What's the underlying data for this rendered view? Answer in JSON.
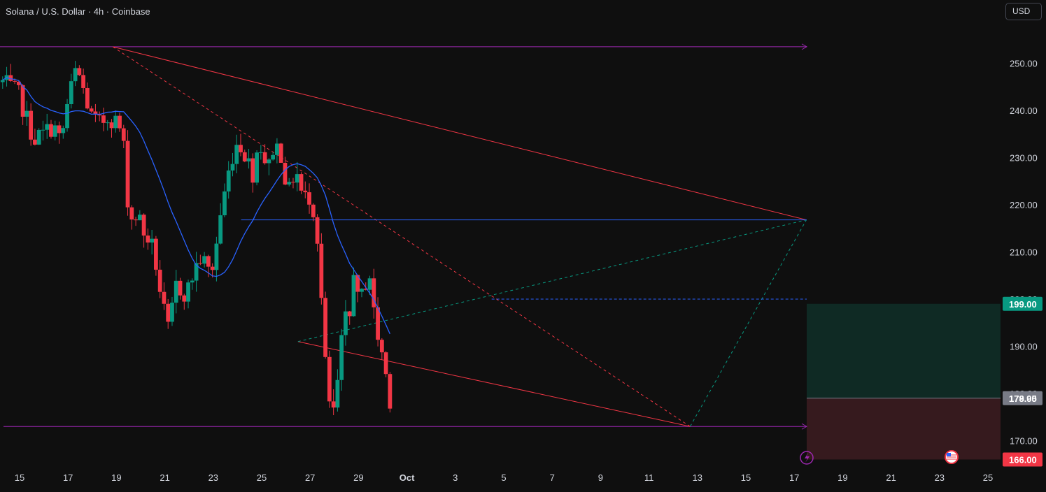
{
  "header": {
    "symbol_title": "Solana / U.S. Dollar · 4h · Coinbase",
    "currency": "USD"
  },
  "colors": {
    "background": "#0f0f0f",
    "up_candle": "#089981",
    "down_candle": "#f23645",
    "moving_average": "#2962ff",
    "horizontal_ray": "#9c27b0",
    "trend_line": "#f23645",
    "projection_dashed": "#089981",
    "profit_zone": "#0f2a24",
    "loss_zone": "#361a1e",
    "axis_text": "#d1d4dc"
  },
  "chart_data": {
    "type": "candlestick",
    "symbol": "SOLUSD",
    "timeframe": "4h",
    "exchange": "Coinbase",
    "x_axis_ticks": [
      "15",
      "17",
      "19",
      "21",
      "23",
      "25",
      "27",
      "29",
      "Oct",
      "3",
      "5",
      "7",
      "9",
      "11",
      "13",
      "15",
      "17",
      "19",
      "21",
      "23",
      "25"
    ],
    "y_axis_ticks": [
      "170.00",
      "180.00",
      "190.00",
      "200.00",
      "210.00",
      "220.00",
      "230.00",
      "240.00",
      "250.00"
    ],
    "y_range": [
      164,
      258
    ],
    "price_labels": {
      "target": "199.00",
      "entry": "179.00",
      "last": "178.95",
      "stop": "166.00"
    },
    "close_path": [
      [
        -0.7,
        246
      ],
      [
        0.0,
        243
      ],
      [
        0.3,
        238
      ],
      [
        0.6,
        234
      ],
      [
        1.0,
        235
      ],
      [
        1.4,
        237
      ],
      [
        1.7,
        233
      ],
      [
        2.0,
        242
      ],
      [
        2.3,
        248
      ],
      [
        2.5,
        247
      ],
      [
        2.7,
        243
      ],
      [
        3.0,
        238
      ],
      [
        3.3,
        237
      ],
      [
        3.7,
        239
      ],
      [
        4.1,
        237
      ],
      [
        4.3,
        232
      ],
      [
        4.45,
        222
      ],
      [
        4.6,
        217
      ],
      [
        4.9,
        218
      ],
      [
        5.1,
        214
      ],
      [
        5.3,
        213
      ],
      [
        5.55,
        210
      ],
      [
        5.8,
        202
      ],
      [
        6.0,
        196
      ],
      [
        6.2,
        192
      ],
      [
        6.4,
        203
      ],
      [
        6.7,
        202
      ],
      [
        6.9,
        201
      ],
      [
        7.2,
        206
      ],
      [
        7.5,
        209
      ],
      [
        7.8,
        206
      ],
      [
        8.0,
        207
      ],
      [
        8.3,
        218
      ],
      [
        8.6,
        226
      ],
      [
        8.9,
        233
      ],
      [
        9.1,
        233
      ],
      [
        9.4,
        230
      ],
      [
        9.6,
        226
      ],
      [
        9.9,
        234
      ],
      [
        10.1,
        230
      ],
      [
        10.3,
        228
      ],
      [
        10.5,
        233
      ],
      [
        10.8,
        231
      ],
      [
        11.1,
        222
      ],
      [
        11.4,
        228
      ],
      [
        11.7,
        221
      ],
      [
        12.0,
        222
      ],
      [
        12.2,
        218
      ],
      [
        12.4,
        208
      ],
      [
        12.55,
        190
      ],
      [
        12.7,
        183
      ],
      [
        12.85,
        175
      ],
      [
        13.0,
        176
      ],
      [
        13.2,
        185
      ],
      [
        13.4,
        196
      ],
      [
        13.6,
        194
      ],
      [
        13.8,
        207
      ],
      [
        14.0,
        198
      ],
      [
        14.25,
        203
      ],
      [
        14.45,
        206
      ],
      [
        14.6,
        198
      ],
      [
        14.8,
        192
      ],
      [
        15.0,
        188
      ],
      [
        15.2,
        182
      ],
      [
        15.3,
        179
      ]
    ]
  }
}
